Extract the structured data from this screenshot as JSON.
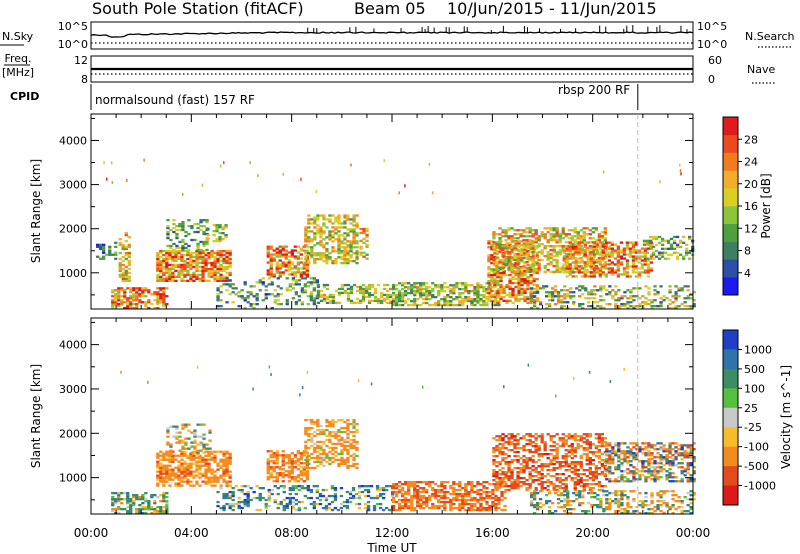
{
  "header": {
    "station": "South Pole Station (fitACF)",
    "beam": "Beam 05",
    "date_range": "10/Jun/2015 - 11/Jun/2015"
  },
  "summary_panels": {
    "nsky": {
      "label": "N.Sky",
      "tick_top": "10^5",
      "tick_bottom": "10^0",
      "right_tick_top": "10^5",
      "right_tick_bottom": "10^0",
      "right_label": "N.Search"
    },
    "freq": {
      "label_line1": "Freq.",
      "label_line2": "[MHz]",
      "tick_top": "12",
      "tick_bottom": "8",
      "right_tick_top": "60",
      "right_tick_bottom": "0",
      "right_label": "Nave"
    },
    "cpid": {
      "label": "CPID",
      "program1": "normalsound (fast) 157 RF",
      "program2": "rbsp 200 RF",
      "program_switch_time_h": 21.8
    }
  },
  "axes": {
    "x_ticks": [
      "00:00",
      "04:00",
      "08:00",
      "12:00",
      "16:00",
      "20:00",
      "00:00"
    ],
    "x_label": "Time UT",
    "y_ticks": [
      "1000",
      "2000",
      "3000",
      "4000"
    ],
    "y_label": "Slant Range [km]"
  },
  "power_scale": {
    "label": "Power [dB]",
    "ticks": [
      "4",
      "8",
      "12",
      "16",
      "20",
      "24",
      "28"
    ],
    "colors": [
      "#1a1aee",
      "#2c4fa8",
      "#3e7f64",
      "#4f9f3c",
      "#8cc43a",
      "#d9cf23",
      "#f4ad2a",
      "#f27b20",
      "#ea4a1d",
      "#e01b1b"
    ]
  },
  "velocity_scale": {
    "label": "Velocity [m s^-1]",
    "ticks": [
      "1000",
      "500",
      "100",
      "25",
      "-25",
      "-100",
      "-500",
      "-1000"
    ],
    "colors": [
      "#1f3fc8",
      "#2f74a8",
      "#3c8d64",
      "#55c040",
      "#c8c8c8",
      "#f6bc2a",
      "#f38b20",
      "#e44b1c",
      "#dc1a1a"
    ]
  },
  "chart_data": [
    {
      "type": "heatmap",
      "name": "power",
      "x_range_hours": [
        0,
        24
      ],
      "y_range_km": [
        180,
        4600
      ],
      "clusters": [
        {
          "t0": 0.8,
          "t1": 3.0,
          "r0": 180,
          "r1": 650,
          "vmin": 14,
          "vmax": 30,
          "density": 0.6
        },
        {
          "t0": 1.1,
          "t1": 1.5,
          "r0": 800,
          "r1": 1900,
          "vmin": 12,
          "vmax": 26,
          "density": 0.45
        },
        {
          "t0": 0.2,
          "t1": 1.0,
          "r0": 1300,
          "r1": 1700,
          "vmin": 4,
          "vmax": 14,
          "density": 0.35
        },
        {
          "t0": 2.6,
          "t1": 5.6,
          "r0": 800,
          "r1": 1500,
          "vmin": 14,
          "vmax": 30,
          "density": 0.75
        },
        {
          "t0": 3.0,
          "t1": 4.6,
          "r0": 1500,
          "r1": 2200,
          "vmin": 6,
          "vmax": 18,
          "density": 0.35
        },
        {
          "t0": 4.6,
          "t1": 5.4,
          "r0": 1700,
          "r1": 2100,
          "vmin": 8,
          "vmax": 22,
          "density": 0.4
        },
        {
          "t0": 7.0,
          "t1": 8.6,
          "r0": 900,
          "r1": 1600,
          "vmin": 14,
          "vmax": 30,
          "density": 0.65
        },
        {
          "t0": 8.5,
          "t1": 10.6,
          "r0": 1200,
          "r1": 2300,
          "vmin": 10,
          "vmax": 24,
          "density": 0.55
        },
        {
          "t0": 10.7,
          "t1": 11.0,
          "r0": 1300,
          "r1": 2000,
          "vmin": 12,
          "vmax": 26,
          "density": 0.4
        },
        {
          "t0": 5.0,
          "t1": 9.0,
          "r0": 180,
          "r1": 900,
          "vmin": 4,
          "vmax": 18,
          "density": 0.25
        },
        {
          "t0": 9.0,
          "t1": 12.0,
          "r0": 300,
          "r1": 750,
          "vmin": 8,
          "vmax": 22,
          "density": 0.5
        },
        {
          "t0": 12.0,
          "t1": 16.2,
          "r0": 250,
          "r1": 750,
          "vmin": 8,
          "vmax": 22,
          "density": 0.6
        },
        {
          "t0": 15.8,
          "t1": 17.8,
          "r0": 300,
          "r1": 1700,
          "vmin": 14,
          "vmax": 30,
          "density": 0.6
        },
        {
          "t0": 16.0,
          "t1": 20.5,
          "r0": 1000,
          "r1": 2000,
          "vmin": 12,
          "vmax": 26,
          "density": 0.5
        },
        {
          "t0": 18.8,
          "t1": 22.4,
          "r0": 900,
          "r1": 1700,
          "vmin": 14,
          "vmax": 30,
          "density": 0.6
        },
        {
          "t0": 22.0,
          "t1": 24.0,
          "r0": 1300,
          "r1": 1800,
          "vmin": 6,
          "vmax": 20,
          "density": 0.45
        },
        {
          "t0": 17.5,
          "t1": 24.0,
          "r0": 180,
          "r1": 700,
          "vmin": 6,
          "vmax": 24,
          "density": 0.35
        }
      ]
    },
    {
      "type": "heatmap",
      "name": "velocity",
      "x_range_hours": [
        0,
        24
      ],
      "y_range_km": [
        180,
        4600
      ],
      "clusters": [
        {
          "t0": 0.8,
          "t1": 3.0,
          "r0": 180,
          "r1": 650,
          "vmin": -200,
          "vmax": 400,
          "density": 0.55
        },
        {
          "t0": 2.6,
          "t1": 5.6,
          "r0": 800,
          "r1": 1600,
          "vmin": -600,
          "vmax": -30,
          "density": 0.6
        },
        {
          "t0": 3.0,
          "t1": 4.8,
          "r0": 1500,
          "r1": 2200,
          "vmin": -300,
          "vmax": 200,
          "density": 0.3
        },
        {
          "t0": 7.0,
          "t1": 8.6,
          "r0": 900,
          "r1": 1600,
          "vmin": -600,
          "vmax": -50,
          "density": 0.6
        },
        {
          "t0": 8.5,
          "t1": 10.6,
          "r0": 1200,
          "r1": 2300,
          "vmin": -500,
          "vmax": 100,
          "density": 0.5
        },
        {
          "t0": 5.0,
          "t1": 12.0,
          "r0": 250,
          "r1": 800,
          "vmin": -100,
          "vmax": 600,
          "density": 0.35
        },
        {
          "t0": 12.0,
          "t1": 16.5,
          "r0": 250,
          "r1": 900,
          "vmin": -800,
          "vmax": -100,
          "density": 0.6
        },
        {
          "t0": 16.0,
          "t1": 20.5,
          "r0": 700,
          "r1": 2000,
          "vmin": -1000,
          "vmax": -100,
          "density": 0.5
        },
        {
          "t0": 20.5,
          "t1": 24.0,
          "r0": 900,
          "r1": 1800,
          "vmin": -700,
          "vmax": 600,
          "density": 0.5
        },
        {
          "t0": 17.5,
          "t1": 24.0,
          "r0": 180,
          "r1": 700,
          "vmin": -400,
          "vmax": 400,
          "density": 0.35
        }
      ]
    }
  ]
}
